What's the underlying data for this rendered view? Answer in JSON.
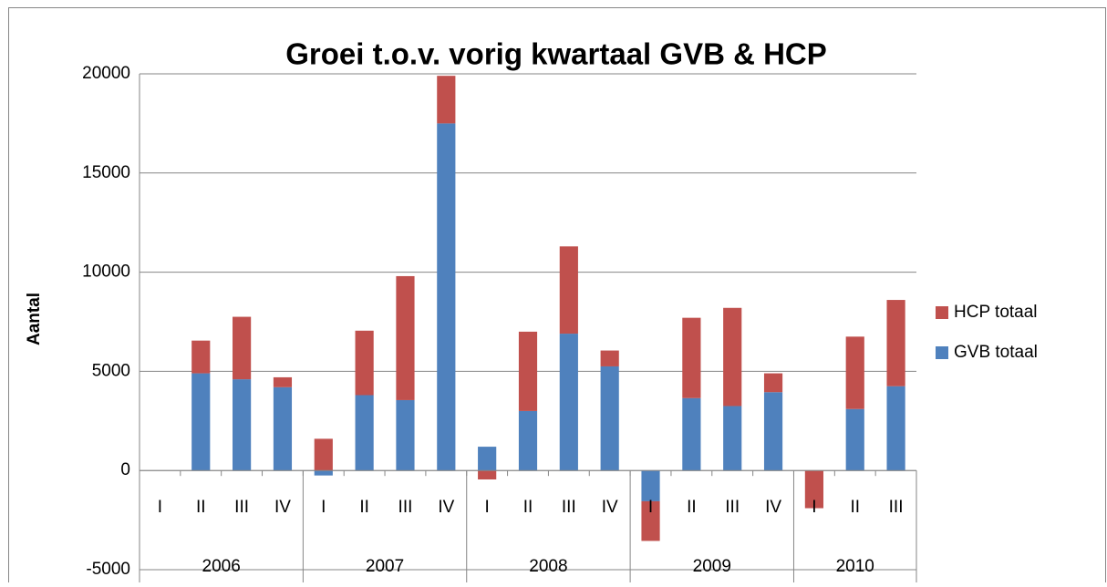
{
  "chart_data": {
    "type": "stacked_bar",
    "title": "Groei t.o.v. vorig kwartaal GVB & HCP",
    "y_label": "Aantal",
    "categories": [
      "I",
      "II",
      "III",
      "IV",
      "I",
      "II",
      "III",
      "IV",
      "I",
      "II",
      "III",
      "IV",
      "I",
      "II",
      "III",
      "IV",
      "I",
      "II",
      "III"
    ],
    "groups": [
      {
        "label": "2006",
        "count": 4
      },
      {
        "label": "2007",
        "count": 4
      },
      {
        "label": "2008",
        "count": 4
      },
      {
        "label": "2009",
        "count": 4
      },
      {
        "label": "2010",
        "count": 3
      }
    ],
    "series": [
      {
        "name": "GVB totaal",
        "color": "#4f81bd",
        "values": [
          0,
          4900,
          4600,
          4200,
          -250,
          3800,
          3550,
          17500,
          1200,
          3000,
          6900,
          5250,
          -1550,
          3650,
          3250,
          3950,
          0,
          3100,
          4250
        ]
      },
      {
        "name": "HCP totaal",
        "color": "#c0504d",
        "values": [
          0,
          1650,
          3150,
          500,
          1600,
          3250,
          6250,
          2400,
          -450,
          4000,
          4400,
          800,
          -2000,
          4050,
          4950,
          950,
          -1900,
          3650,
          4350
        ]
      }
    ],
    "ylim": [
      -5000,
      20000
    ],
    "yticks": [
      -5000,
      0,
      5000,
      10000,
      15000,
      20000
    ],
    "grid": true,
    "legend": "right"
  }
}
